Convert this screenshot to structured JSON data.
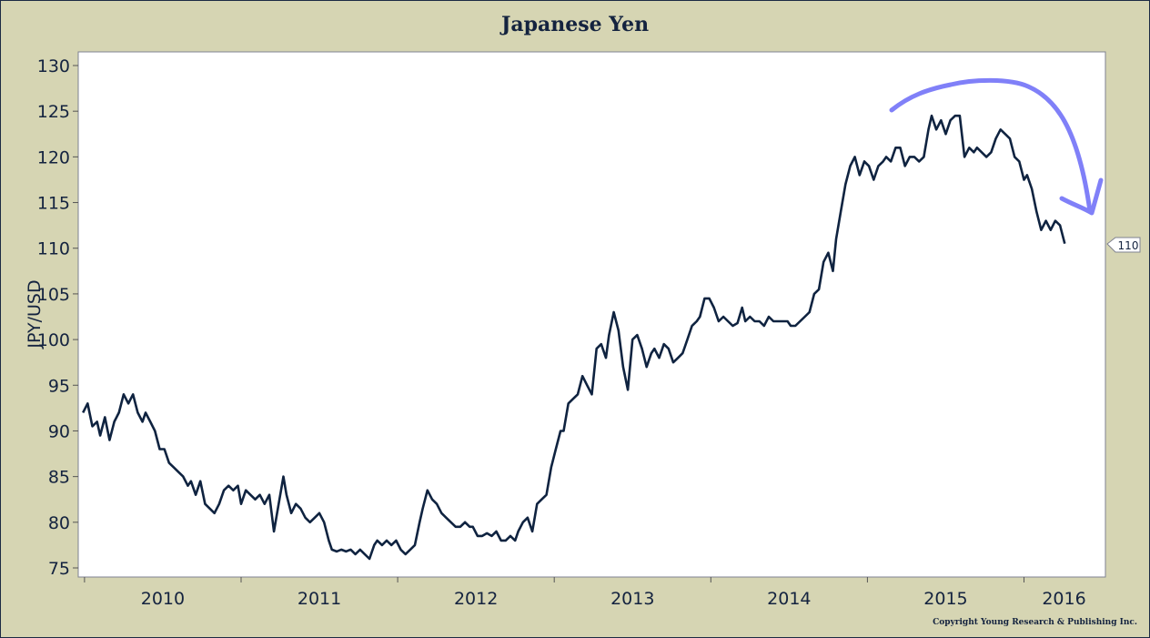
{
  "chart_data": {
    "type": "line",
    "title": "Japanese Yen",
    "xlabel": "",
    "ylabel": "JPY/USD",
    "xlim": [
      2009.96,
      2016.52
    ],
    "ylim": [
      75,
      130
    ],
    "yticks": [
      75,
      80,
      85,
      90,
      95,
      100,
      105,
      110,
      115,
      120,
      125,
      130
    ],
    "xticks": [
      2010,
      2011,
      2012,
      2013,
      2014,
      2015,
      2016
    ],
    "xtick_labels": [
      "2010",
      "2011",
      "2012",
      "2013",
      "2014",
      "2015",
      "2016"
    ],
    "grid": false,
    "legend": "none",
    "line_color": "#0f2340",
    "annotation_color": "#8080f8",
    "last_value_label": "110",
    "copyright": "Copyright Young Research & Publishing Inc.",
    "series": [
      {
        "x": [
          2009.99,
          2010.02,
          2010.05,
          2010.08,
          2010.1,
          2010.13,
          2010.16,
          2010.19,
          2010.22,
          2010.25,
          2010.28,
          2010.31,
          2010.34,
          2010.37,
          2010.39,
          2010.42,
          2010.45,
          2010.48,
          2010.51,
          2010.54,
          2010.57,
          2010.6,
          2010.63,
          2010.66,
          2010.68,
          2010.71,
          2010.74,
          2010.77,
          2010.8,
          2010.83,
          2010.86,
          2010.89,
          2010.92,
          2010.95,
          2010.98,
          2011.0,
          2011.03,
          2011.06,
          2011.09,
          2011.12,
          2011.15,
          2011.18,
          2011.21,
          2011.24,
          2011.27,
          2011.29,
          2011.32,
          2011.35,
          2011.38,
          2011.41,
          2011.44,
          2011.47,
          2011.5,
          2011.53,
          2011.56,
          2011.58,
          2011.61,
          2011.64,
          2011.67,
          2011.7,
          2011.73,
          2011.76,
          2011.79,
          2011.82,
          2011.85,
          2011.87,
          2011.9,
          2011.93,
          2011.96,
          2011.99,
          2012.02,
          2012.05,
          2012.08,
          2012.11,
          2012.14,
          2012.16,
          2012.19,
          2012.22,
          2012.25,
          2012.28,
          2012.31,
          2012.34,
          2012.37,
          2012.4,
          2012.43,
          2012.46,
          2012.48,
          2012.51,
          2012.54,
          2012.57,
          2012.6,
          2012.63,
          2012.66,
          2012.69,
          2012.72,
          2012.75,
          2012.77,
          2012.8,
          2012.83,
          2012.86,
          2012.89,
          2012.92,
          2012.95,
          2012.98,
          2013.01,
          2013.04,
          2013.06,
          2013.09,
          2013.12,
          2013.15,
          2013.18,
          2013.21,
          2013.24,
          2013.27,
          2013.3,
          2013.33,
          2013.35,
          2013.38,
          2013.41,
          2013.44,
          2013.47,
          2013.5,
          2013.53,
          2013.56,
          2013.59,
          2013.62,
          2013.64,
          2013.67,
          2013.7,
          2013.73,
          2013.76,
          2013.79,
          2013.82,
          2013.85,
          2013.88,
          2013.91,
          2013.93,
          2013.96,
          2013.99,
          2014.02,
          2014.05,
          2014.08,
          2014.11,
          2014.14,
          2014.17,
          2014.2,
          2014.22,
          2014.25,
          2014.28,
          2014.31,
          2014.34,
          2014.37,
          2014.4,
          2014.43,
          2014.46,
          2014.49,
          2014.51,
          2014.54,
          2014.57,
          2014.6,
          2014.63,
          2014.66,
          2014.69,
          2014.72,
          2014.75,
          2014.78,
          2014.8,
          2014.83,
          2014.86,
          2014.89,
          2014.92,
          2014.95,
          2014.98,
          2015.01,
          2015.04,
          2015.07,
          2015.1,
          2015.12,
          2015.15,
          2015.18,
          2015.21,
          2015.24,
          2015.27,
          2015.3,
          2015.33,
          2015.36,
          2015.39,
          2015.41,
          2015.44,
          2015.47,
          2015.5,
          2015.53,
          2015.56,
          2015.59,
          2015.62,
          2015.65,
          2015.68,
          2015.7,
          2015.73,
          2015.76,
          2015.79,
          2015.82,
          2015.85,
          2015.88,
          2015.91,
          2015.94,
          2015.97,
          2016.0,
          2016.02,
          2016.05,
          2016.08,
          2016.11,
          2016.14,
          2016.17,
          2016.2,
          2016.23,
          2016.26
        ],
        "y": [
          92,
          93,
          90.5,
          91,
          89.5,
          91.5,
          89,
          91,
          92,
          94,
          93,
          94,
          92,
          91,
          92,
          91,
          90,
          88,
          88,
          86.5,
          86,
          85.5,
          85,
          84,
          84.5,
          83,
          84.5,
          82,
          81.5,
          81,
          82,
          83.5,
          84,
          83.5,
          84,
          82,
          83.5,
          83,
          82.5,
          83,
          82,
          83,
          79,
          82,
          85,
          83,
          81,
          82,
          81.5,
          80.5,
          80,
          80.5,
          81,
          80,
          78,
          77,
          76.8,
          77,
          76.8,
          77,
          76.5,
          77,
          76.5,
          76,
          77.5,
          78,
          77.5,
          78,
          77.5,
          78,
          77,
          76.5,
          77,
          77.5,
          80,
          81.5,
          83.5,
          82.5,
          82,
          81,
          80.5,
          80,
          79.5,
          79.5,
          80,
          79.5,
          79.5,
          78.5,
          78.5,
          78.8,
          78.5,
          79,
          78,
          78,
          78.5,
          78,
          79,
          80,
          80.5,
          79,
          82,
          82.5,
          83,
          86,
          88,
          90,
          90,
          93,
          93.5,
          94,
          96,
          95,
          94,
          99,
          99.5,
          98,
          100.5,
          103,
          101,
          97,
          94.5,
          100,
          100.5,
          99,
          97,
          98.5,
          99,
          98,
          99.5,
          99,
          97.5,
          98,
          98.5,
          100,
          101.5,
          102,
          102.5,
          104.5,
          104.5,
          103.5,
          102,
          102.5,
          102,
          101.5,
          101.8,
          103.5,
          102,
          102.5,
          102,
          102,
          101.5,
          102.5,
          102,
          102,
          102,
          102,
          101.5,
          101.5,
          102,
          102.5,
          103,
          105,
          105.5,
          108.5,
          109.5,
          107.5,
          111,
          114,
          117,
          119,
          120,
          118,
          119.5,
          119,
          117.5,
          119,
          119.5,
          120,
          119.5,
          121,
          121,
          119,
          120,
          120,
          119.5,
          120,
          123,
          124.5,
          123,
          124,
          122.5,
          124,
          124.5,
          124.5,
          120,
          121,
          120.5,
          121,
          120.5,
          120,
          120.5,
          122,
          123,
          122.5,
          122,
          120,
          119.5,
          117.5,
          118,
          116.5,
          114,
          112,
          113,
          112,
          113,
          112.5,
          110.5
        ]
      }
    ]
  }
}
